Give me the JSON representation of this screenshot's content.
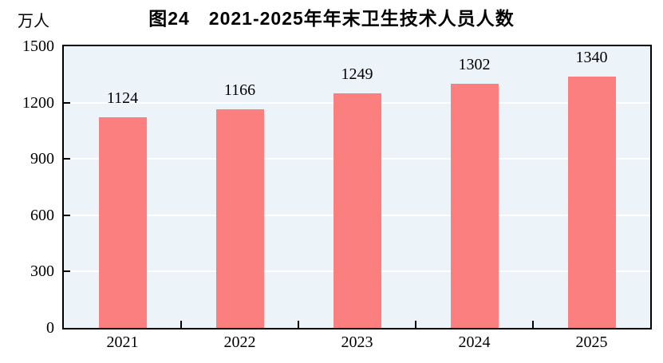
{
  "chart_data": {
    "type": "bar",
    "title": "图24　2021-2025年年末卫生技术人员人数",
    "unit_label": "万人",
    "categories": [
      "2021",
      "2022",
      "2023",
      "2024",
      "2025"
    ],
    "values": [
      1124,
      1166,
      1249,
      1302,
      1340
    ],
    "ylim": [
      0,
      1500
    ],
    "yticks": [
      0,
      300,
      600,
      900,
      1200,
      1500
    ],
    "grid": true,
    "legend": "none",
    "colors": {
      "bar": "#FB7F7F",
      "plot_background": "#ECF3F9",
      "gridline": "#FFFFFF",
      "axis": "#000000",
      "text": "#000000",
      "page_background": "#FFFFFF"
    }
  }
}
